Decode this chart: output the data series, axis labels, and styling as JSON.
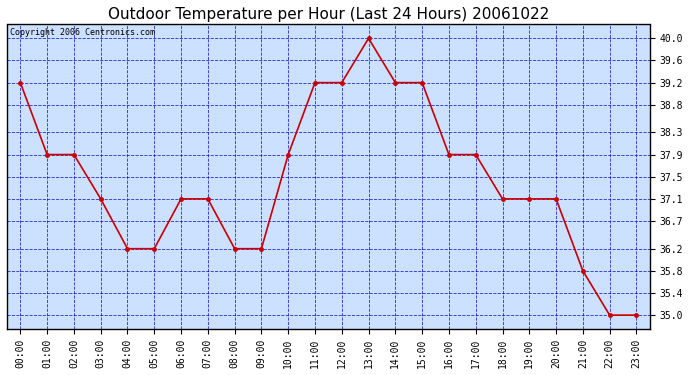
{
  "title": "Outdoor Temperature per Hour (Last 24 Hours) 20061022",
  "copyright_text": "Copyright 2006 Centronics.com",
  "hours": [
    "00:00",
    "01:00",
    "02:00",
    "03:00",
    "04:00",
    "05:00",
    "06:00",
    "07:00",
    "08:00",
    "09:00",
    "10:00",
    "11:00",
    "12:00",
    "13:00",
    "14:00",
    "15:00",
    "16:00",
    "17:00",
    "18:00",
    "19:00",
    "20:00",
    "21:00",
    "22:00",
    "23:00"
  ],
  "temperatures": [
    39.2,
    37.9,
    37.9,
    37.1,
    36.2,
    36.2,
    37.1,
    37.1,
    36.2,
    36.2,
    37.9,
    39.2,
    39.2,
    40.0,
    39.2,
    39.2,
    37.9,
    37.9,
    37.1,
    37.1,
    37.1,
    35.8,
    35.0,
    35.0
  ],
  "ylim": [
    34.75,
    40.25
  ],
  "yticks": [
    35.0,
    35.4,
    35.8,
    36.2,
    36.7,
    37.1,
    37.5,
    37.9,
    38.3,
    38.8,
    39.2,
    39.6,
    40.0
  ],
  "line_color": "#cc0000",
  "marker_color": "#cc0000",
  "fig_bg_color": "#ffffff",
  "plot_bg_color": "#cce0ff",
  "grid_color": "#0000bb",
  "border_color": "#000000",
  "title_fontsize": 11,
  "copyright_fontsize": 6,
  "tick_fontsize": 7,
  "ytick_fontsize": 7
}
